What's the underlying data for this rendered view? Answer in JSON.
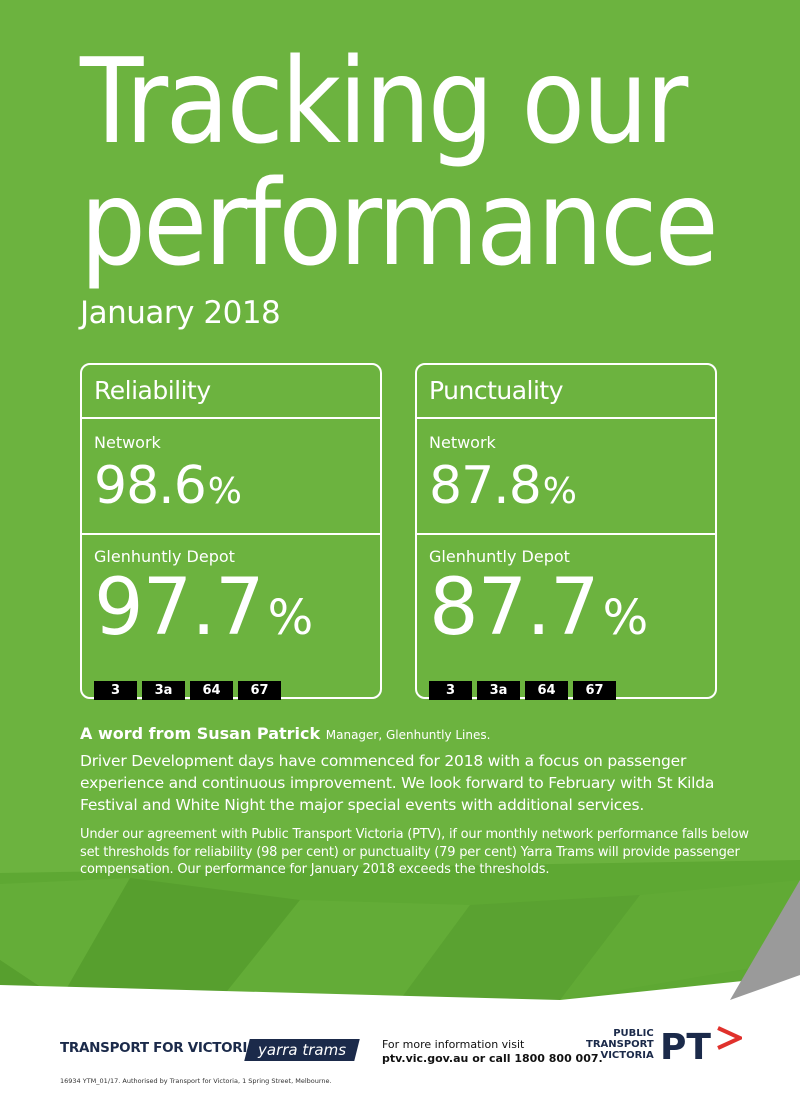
{
  "title": {
    "line1": "Tracking our",
    "line2": "performance"
  },
  "period": "January 2018",
  "panels": [
    {
      "heading": "Reliability",
      "network_label": "Network",
      "network_value": "98.6",
      "depot_label": "Glenhuntly Depot",
      "depot_value": "97.7",
      "percent_sign": "%",
      "routes": [
        "3",
        "3a",
        "64",
        "67"
      ]
    },
    {
      "heading": "Punctuality",
      "network_label": "Network",
      "network_value": "87.8",
      "depot_label": "Glenhuntly Depot",
      "depot_value": "87.7",
      "percent_sign": "%",
      "routes": [
        "3",
        "3a",
        "64",
        "67"
      ]
    }
  ],
  "word": {
    "name": "A word from Susan Patrick",
    "role": "Manager, Glenhuntly Lines.",
    "body": "Driver Development days have commenced for 2018 with a focus on passenger experience and continuous improvement. We look forward to February with St Kilda Festival and White Night the major special events with additional services."
  },
  "fineprint": "Under our agreement with Public Transport Victoria (PTV), if our monthly network performance falls below set thresholds for reliability (98 per cent) or punctuality (79 per cent) Yarra Trams will provide passenger compensation. Our performance for January 2018 exceeds the thresholds.",
  "footer": {
    "tfv_logo": "TRANSPORT FOR VICTORIA",
    "yarra_logo": "yarra trams",
    "info_line1": "For more information visit",
    "info_line2": "ptv.vic.gov.au or call 1800 800 007.",
    "ptv_line1": "PUBLIC",
    "ptv_line2": "TRANSPORT",
    "ptv_line3": "VICTORIA",
    "ptv_mark": "PT",
    "authorised": "16934 YTM_01/17. Authorised by Transport for Victoria, 1 Spring Street, Melbourne."
  },
  "colors": {
    "green": "#6cb33f",
    "navy": "#1b2a4a",
    "ptv_red": "#e0312c"
  }
}
